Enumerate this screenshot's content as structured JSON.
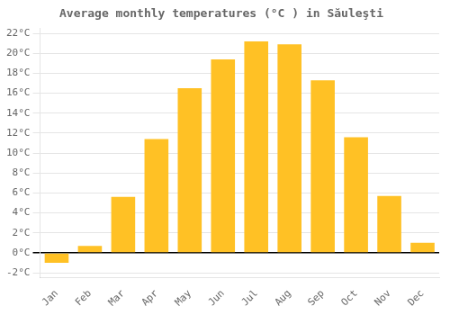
{
  "chart_data": {
    "type": "bar",
    "title": "Average monthly temperatures (°C ) in Săuleşti",
    "categories": [
      "Jan",
      "Feb",
      "Mar",
      "Apr",
      "May",
      "Jun",
      "Jul",
      "Aug",
      "Sep",
      "Oct",
      "Nov",
      "Dec"
    ],
    "values": [
      -1.0,
      0.7,
      5.6,
      11.4,
      16.5,
      19.4,
      21.2,
      20.9,
      17.3,
      11.6,
      5.7,
      1.0
    ],
    "color": "#FFC125",
    "ylim": [
      -2.5,
      22.5
    ],
    "yticks": [
      {
        "value": -2,
        "label": "-2°C"
      },
      {
        "value": 0,
        "label": "0°C"
      },
      {
        "value": 2,
        "label": "2°C"
      },
      {
        "value": 4,
        "label": "4°C"
      },
      {
        "value": 6,
        "label": "6°C"
      },
      {
        "value": 8,
        "label": "8°C"
      },
      {
        "value": 10,
        "label": "10°C"
      },
      {
        "value": 12,
        "label": "12°C"
      },
      {
        "value": 14,
        "label": "14°C"
      },
      {
        "value": 16,
        "label": "16°C"
      },
      {
        "value": 18,
        "label": "18°C"
      },
      {
        "value": 20,
        "label": "20°C"
      },
      {
        "value": 22,
        "label": "22°C"
      }
    ],
    "grid": true
  }
}
